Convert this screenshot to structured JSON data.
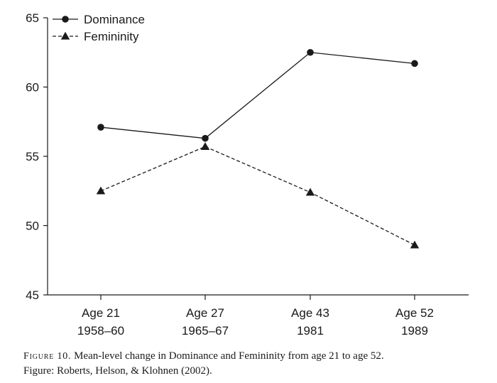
{
  "chart_data": {
    "type": "line",
    "categories": [
      "Age 21",
      "Age 27",
      "Age 43",
      "Age 52"
    ],
    "category_sublabels": [
      "1958–60",
      "1965–67",
      "1981",
      "1989"
    ],
    "series": [
      {
        "name": "Dominance",
        "values": [
          57.1,
          56.3,
          62.5,
          61.7
        ],
        "line_style": "solid",
        "marker": "circle",
        "color": "#1a1a1a"
      },
      {
        "name": "Femininity",
        "values": [
          52.5,
          55.7,
          52.4,
          48.6
        ],
        "line_style": "dashed",
        "marker": "triangle",
        "color": "#1a1a1a"
      }
    ],
    "ylim": [
      45,
      65
    ],
    "yticks": [
      "45",
      "50",
      "55",
      "60",
      "65"
    ],
    "xlabel": "",
    "ylabel": "",
    "grid": false,
    "legend_position": "top-left"
  },
  "caption": {
    "figure_label": "Figure 10.",
    "text": " Mean-level change in Dominance and Femininity from age 21 to age 52.",
    "source": "Figure: Roberts, Helson, & Klohnen (2002)."
  }
}
